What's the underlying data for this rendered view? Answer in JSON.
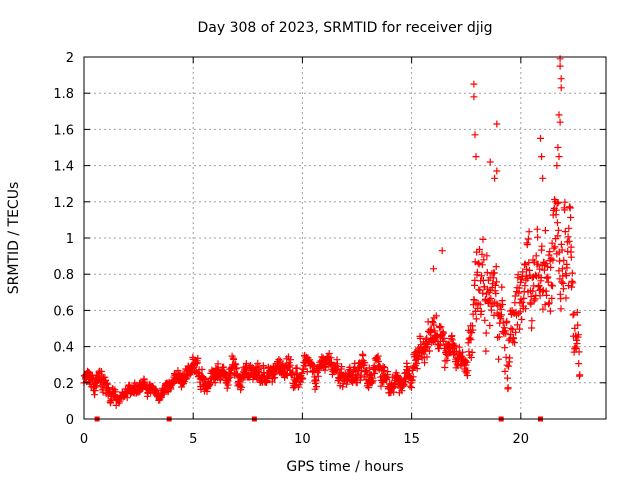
{
  "chart_data": {
    "type": "scatter",
    "title": "Day 308 of 2023, SRMTID for receiver djig",
    "xlabel": "GPS time / hours",
    "ylabel": "SRMTID / TECUs",
    "xlim": [
      0,
      23.9
    ],
    "ylim": [
      0,
      2
    ],
    "xticks": [
      "0",
      "5",
      "10",
      "15",
      "20"
    ],
    "yticks": [
      "0",
      "0.2",
      "0.4",
      "0.6",
      "0.8",
      "1",
      "1.2",
      "1.4",
      "1.6",
      "1.8",
      "2"
    ],
    "grid": true,
    "marker": "+",
    "color": "#ff0000",
    "series_profile": [
      {
        "x": 0.0,
        "mean": 0.22,
        "spread": 0.08
      },
      {
        "x": 1.0,
        "mean": 0.2,
        "spread": 0.1
      },
      {
        "x": 1.5,
        "mean": 0.1,
        "spread": 0.05
      },
      {
        "x": 2.5,
        "mean": 0.16,
        "spread": 0.06
      },
      {
        "x": 3.5,
        "mean": 0.15,
        "spread": 0.04
      },
      {
        "x": 5.0,
        "mean": 0.22,
        "spread": 0.08
      },
      {
        "x": 7.5,
        "mean": 0.22,
        "spread": 0.08
      },
      {
        "x": 10.0,
        "mean": 0.25,
        "spread": 0.09
      },
      {
        "x": 12.5,
        "mean": 0.27,
        "spread": 0.1
      },
      {
        "x": 14.0,
        "mean": 0.22,
        "spread": 0.1
      },
      {
        "x": 15.0,
        "mean": 0.25,
        "spread": 0.08
      },
      {
        "x": 16.0,
        "mean": 0.45,
        "spread": 0.2
      },
      {
        "x": 17.0,
        "mean": 0.35,
        "spread": 0.1
      },
      {
        "x": 17.5,
        "mean": 0.28,
        "spread": 0.08
      },
      {
        "x": 18.0,
        "mean": 0.75,
        "spread": 0.45
      },
      {
        "x": 19.0,
        "mean": 0.6,
        "spread": 0.35
      },
      {
        "x": 20.0,
        "mean": 0.65,
        "spread": 0.35
      },
      {
        "x": 21.0,
        "mean": 0.7,
        "spread": 0.4
      },
      {
        "x": 22.0,
        "mean": 0.7,
        "spread": 0.5
      },
      {
        "x": 22.7,
        "mean": 0.5,
        "spread": 0.2
      }
    ],
    "peak_points": [
      {
        "x": 17.85,
        "y": 1.85
      },
      {
        "x": 17.85,
        "y": 1.78
      },
      {
        "x": 17.9,
        "y": 1.57
      },
      {
        "x": 17.95,
        "y": 1.45
      },
      {
        "x": 18.9,
        "y": 1.63
      },
      {
        "x": 18.6,
        "y": 1.42
      },
      {
        "x": 18.8,
        "y": 1.33
      },
      {
        "x": 18.9,
        "y": 1.37
      },
      {
        "x": 20.9,
        "y": 1.55
      },
      {
        "x": 20.95,
        "y": 1.45
      },
      {
        "x": 21.0,
        "y": 1.33
      },
      {
        "x": 21.8,
        "y": 1.99
      },
      {
        "x": 21.8,
        "y": 1.95
      },
      {
        "x": 21.85,
        "y": 1.88
      },
      {
        "x": 21.85,
        "y": 1.83
      },
      {
        "x": 21.75,
        "y": 1.68
      },
      {
        "x": 21.8,
        "y": 1.64
      },
      {
        "x": 21.7,
        "y": 1.5
      },
      {
        "x": 21.75,
        "y": 1.45
      },
      {
        "x": 21.65,
        "y": 1.4
      },
      {
        "x": 16.4,
        "y": 0.93
      },
      {
        "x": 16.0,
        "y": 0.83
      },
      {
        "x": 22.3,
        "y": 0.95
      }
    ],
    "data_gaps_hours": [
      0.6,
      3.9,
      7.8,
      19.1,
      20.9
    ],
    "x_range_hours": [
      0.0,
      22.7
    ]
  }
}
